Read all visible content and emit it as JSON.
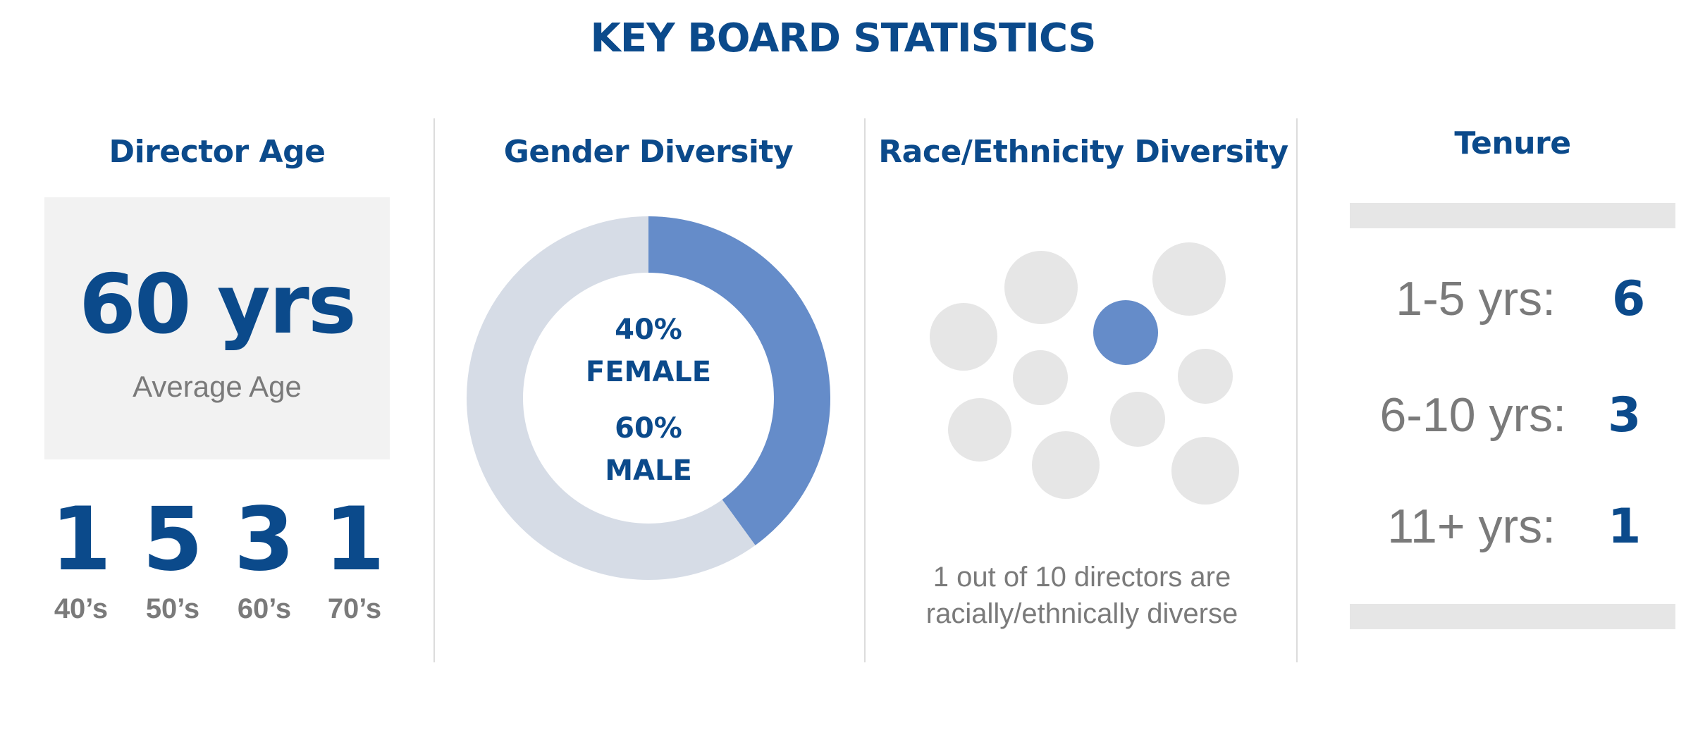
{
  "title": "KEY BOARD STATISTICS",
  "director_age": {
    "heading": "Director Age",
    "average_value": "60 yrs",
    "average_label": "Average Age",
    "decades": [
      {
        "count": "1",
        "label": "40’s"
      },
      {
        "count": "5",
        "label": "50’s"
      },
      {
        "count": "3",
        "label": "60’s"
      },
      {
        "count": "1",
        "label": "70’s"
      }
    ]
  },
  "gender": {
    "heading": "Gender Diversity",
    "female_pct": "40%",
    "female_label": "FEMALE",
    "male_pct": "60%",
    "male_label": "MALE",
    "female_fraction": 0.4,
    "colors": {
      "female": "#658cc9",
      "male": "#d6dce6"
    }
  },
  "race": {
    "heading": "Race/Ethnicity Diversity",
    "diverse_count": 1,
    "total_count": 10,
    "caption_line1": "1 out of 10 directors are",
    "caption_line2": "racially/ethnically diverse",
    "colors": {
      "diverse": "#658cc9",
      "other": "#e6e6e6"
    }
  },
  "tenure": {
    "heading": "Tenure",
    "rows": [
      {
        "label": "1-5 yrs:",
        "value": "6"
      },
      {
        "label": "6-10 yrs:",
        "value": "3"
      },
      {
        "label": "11+ yrs:",
        "value": "1"
      }
    ]
  }
}
